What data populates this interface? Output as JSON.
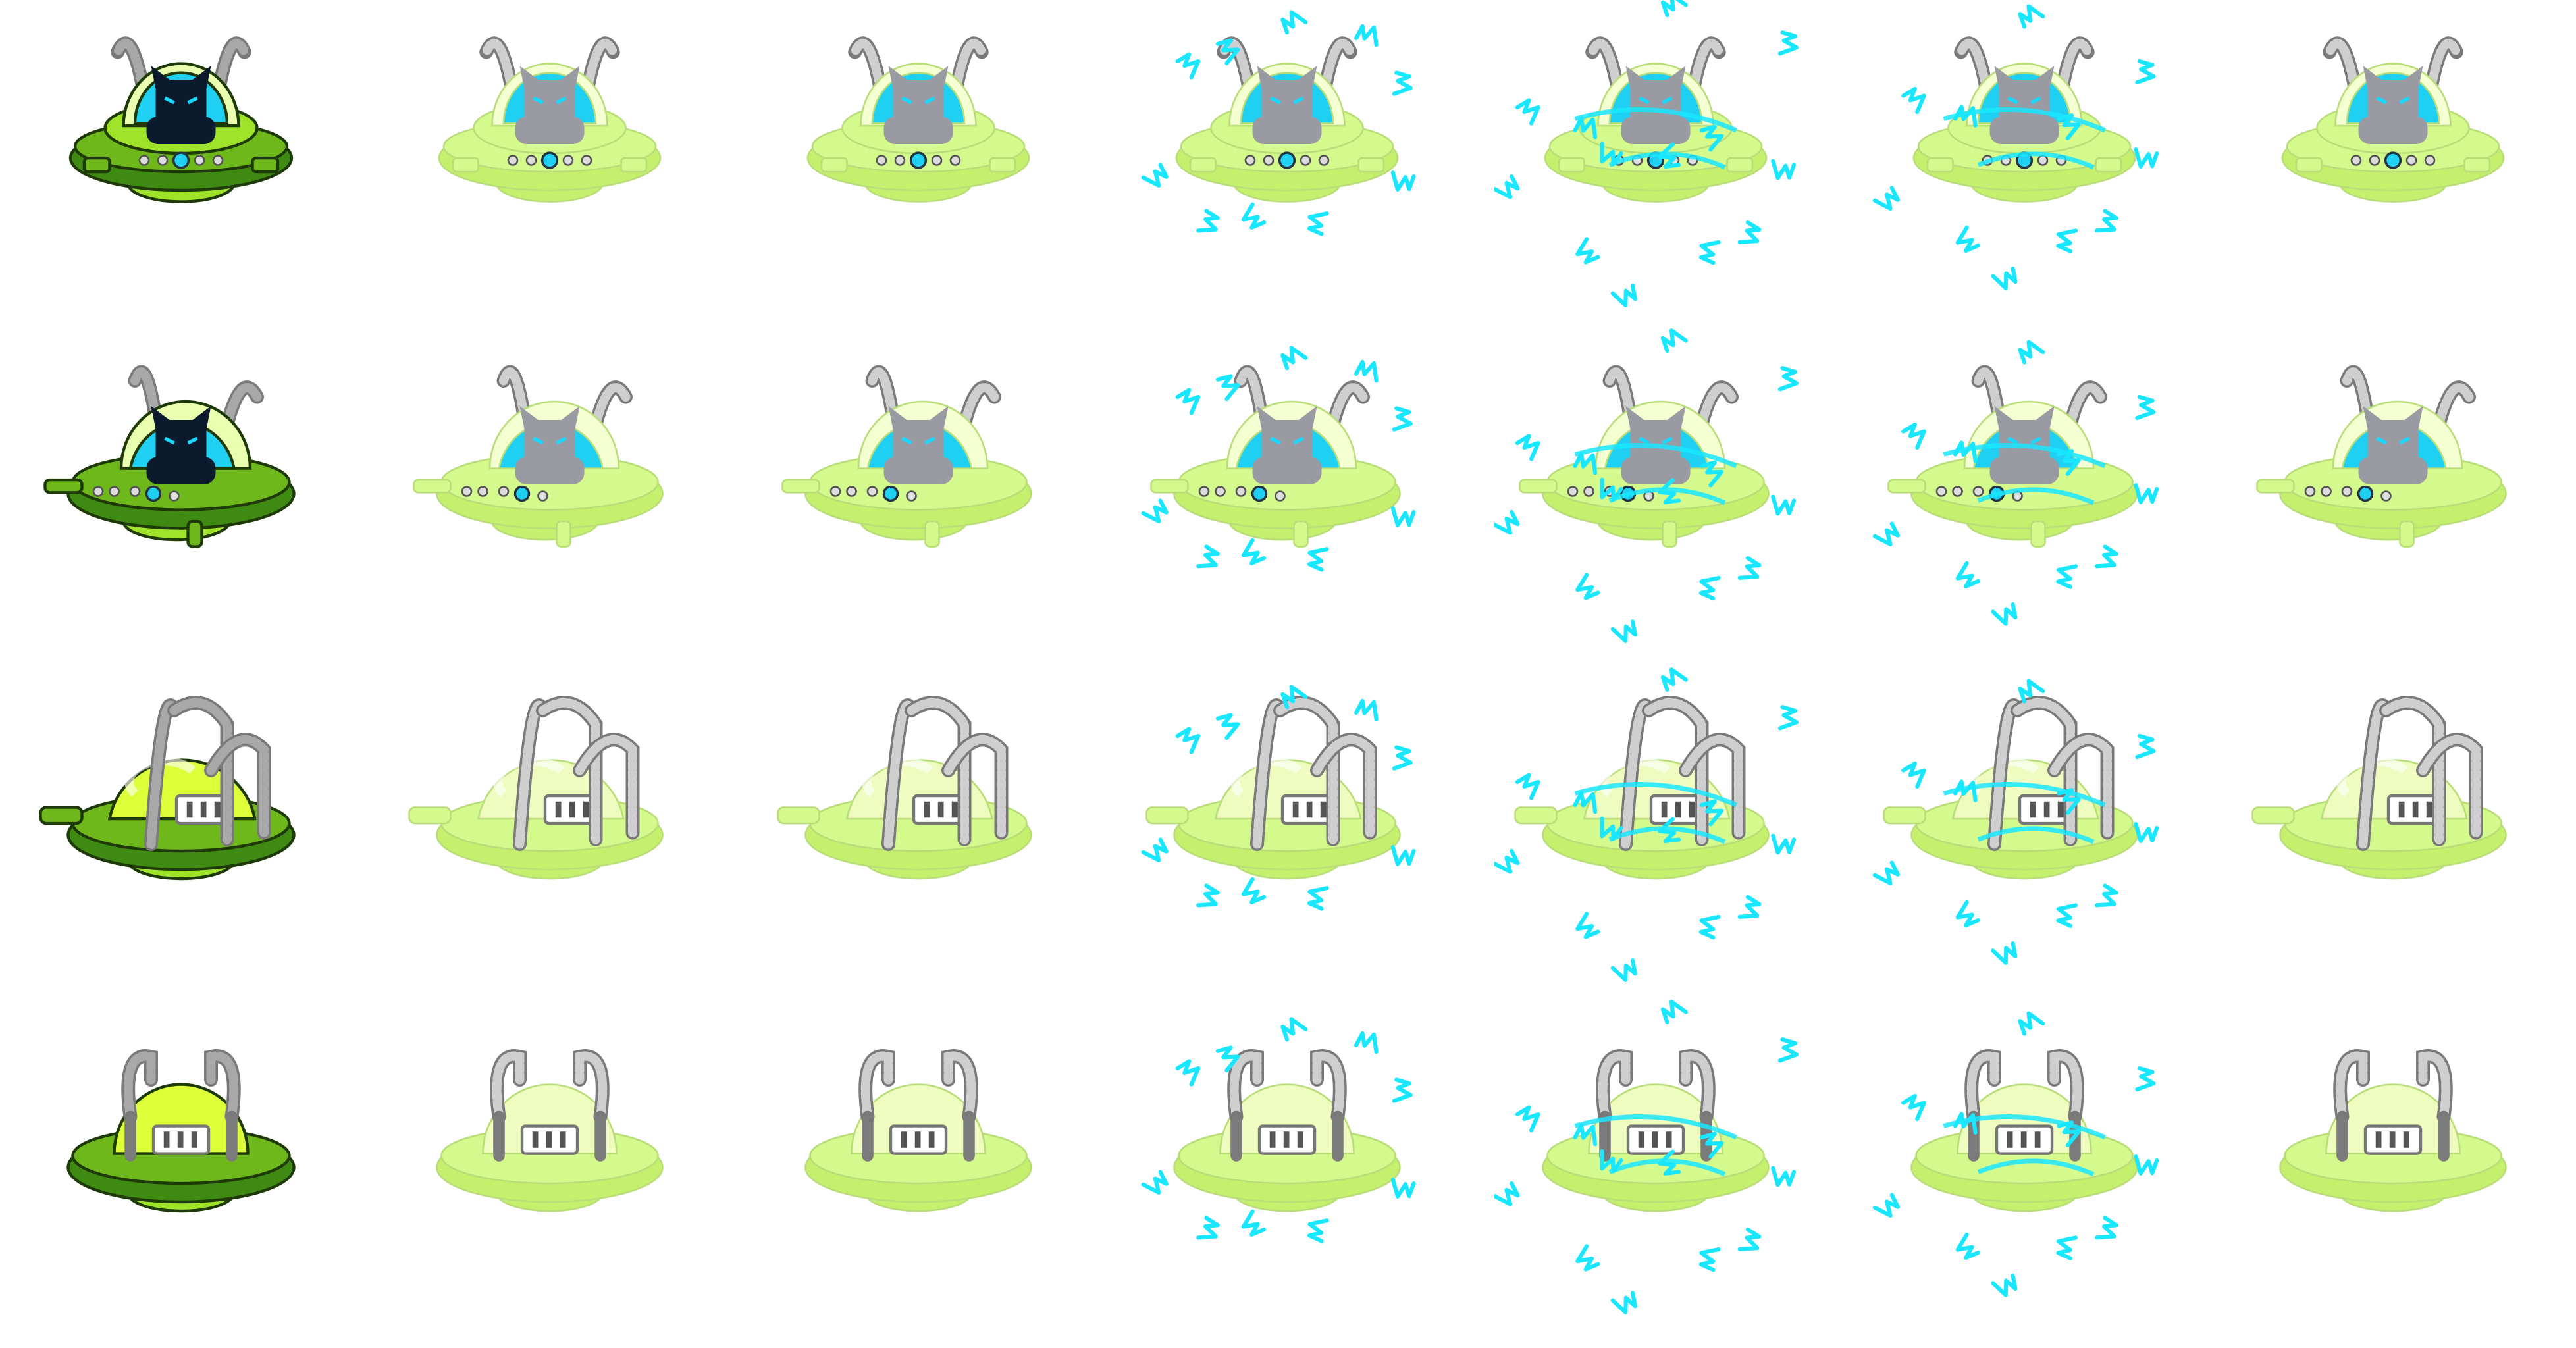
{
  "sheet": {
    "palette": {
      "dark_green": "#3f8a12",
      "mid_green": "#6fb81c",
      "lime": "#9fe22a",
      "pale_lime": "#eaffb0",
      "lime_yellow": "#dcff3a",
      "glass_cyan": "#1fd0f2",
      "pilot_dark": "#0c1a2e",
      "pilot_ghost": "#9a9aa2",
      "metal": "#a8a8a8",
      "spark": "#19e6ff",
      "faded_body": "#d4f98c",
      "faded_rim": "#c4f06e"
    },
    "rows": [
      {
        "id": "front",
        "view": "front-view-saucer",
        "frames": 7
      },
      {
        "id": "three-quarter",
        "view": "three-quarter-view-saucer",
        "frames": 7
      },
      {
        "id": "side",
        "view": "side-view-saucer",
        "frames": 7
      },
      {
        "id": "back",
        "view": "back-view-saucer",
        "frames": 7
      }
    ],
    "frames": [
      {
        "state": "normal",
        "sparks": "none"
      },
      {
        "state": "faded",
        "sparks": "none"
      },
      {
        "state": "faded",
        "sparks": "none"
      },
      {
        "state": "faded",
        "sparks": "light"
      },
      {
        "state": "faded",
        "sparks": "heavy"
      },
      {
        "state": "faded",
        "sparks": "medium"
      },
      {
        "state": "faded",
        "sparks": "none"
      }
    ]
  }
}
